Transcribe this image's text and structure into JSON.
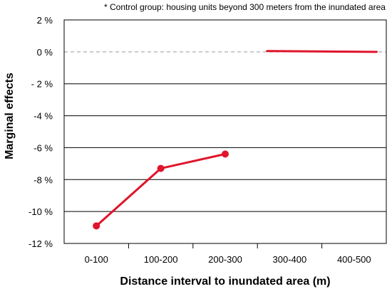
{
  "chart_data": {
    "type": "line",
    "note": "* Control group: housing units beyond 300 meters from the inundated area",
    "xlabel": "Distance interval to inundated area (m)",
    "ylabel": "Marginal effects",
    "categories": [
      "0-100",
      "100-200",
      "200-300",
      "300-400",
      "400-500"
    ],
    "ylim": [
      -12,
      2
    ],
    "yticks": [
      {
        "value": 2,
        "label": "2 %"
      },
      {
        "value": 0,
        "label": "0 %"
      },
      {
        "value": -2,
        "label": "- 2 %"
      },
      {
        "value": -4,
        "label": "-4 %"
      },
      {
        "value": -6,
        "label": "-6 %"
      },
      {
        "value": -8,
        "label": "-8 %"
      },
      {
        "value": -10,
        "label": "-10 %"
      },
      {
        "value": -12,
        "label": "-12 %"
      }
    ],
    "series": [
      {
        "values": [
          -10.9,
          -7.3,
          -6.4,
          null,
          null
        ],
        "color": "#e0142a",
        "markers": true
      },
      {
        "values": [
          null,
          null,
          null,
          0.05,
          0.0
        ],
        "color": "#e0142a",
        "markers": false,
        "segment": "control"
      }
    ],
    "grid": true,
    "zero_line": "dashed"
  }
}
